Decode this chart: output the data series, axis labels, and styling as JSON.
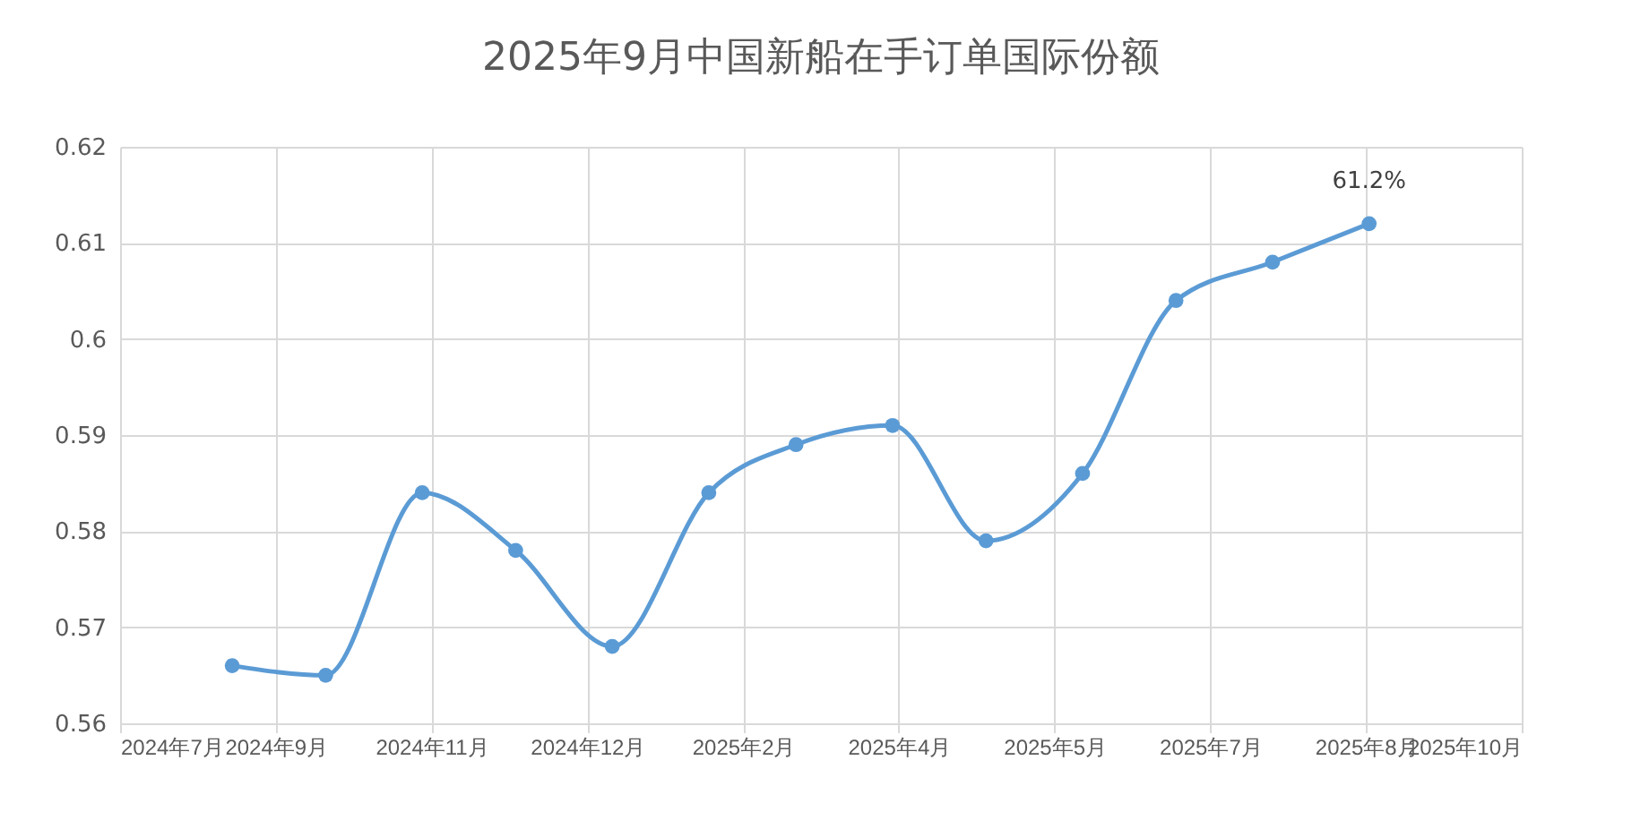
{
  "chart_data": {
    "type": "line",
    "title": "2025年9月中国新船在手订单国际份额",
    "x": [
      "2024-08-31",
      "2024-09-30",
      "2024-10-31",
      "2024-11-30",
      "2024-12-31",
      "2025-01-31",
      "2025-02-28",
      "2025-03-31",
      "2025-04-30",
      "2025-05-31",
      "2025-06-30",
      "2025-07-31",
      "2025-08-31"
    ],
    "series": [
      {
        "color": "#5b9bd5",
        "values": [
          0.566,
          0.565,
          0.584,
          0.578,
          0.568,
          0.584,
          0.589,
          0.591,
          0.579,
          0.586,
          0.604,
          0.608,
          0.612
        ]
      }
    ],
    "xlim": [
      "2024-07-26",
      "2025-10-19"
    ],
    "xticks": [
      {
        "value": "2024-07-26",
        "label": "2024年7月"
      },
      {
        "value": "2024-09-14",
        "label": "2024年9月"
      },
      {
        "value": "2024-11-03",
        "label": "2024年11月"
      },
      {
        "value": "2024-12-23",
        "label": "2024年12月"
      },
      {
        "value": "2025-02-11",
        "label": "2025年2月"
      },
      {
        "value": "2025-04-02",
        "label": "2025年4月"
      },
      {
        "value": "2025-05-22",
        "label": "2025年5月"
      },
      {
        "value": "2025-07-11",
        "label": "2025年7月"
      },
      {
        "value": "2025-08-30",
        "label": "2025年8月"
      },
      {
        "value": "2025-10-19",
        "label": "2025年10月"
      }
    ],
    "ylim": [
      0.56,
      0.62
    ],
    "yticks": [
      0.56,
      0.57,
      0.58,
      0.59,
      0.6,
      0.61,
      0.62
    ],
    "annotations": [
      {
        "text": "61.2%",
        "x": "2025-08-31",
        "y": 0.612
      }
    ],
    "grid": true,
    "marker": "circle"
  }
}
